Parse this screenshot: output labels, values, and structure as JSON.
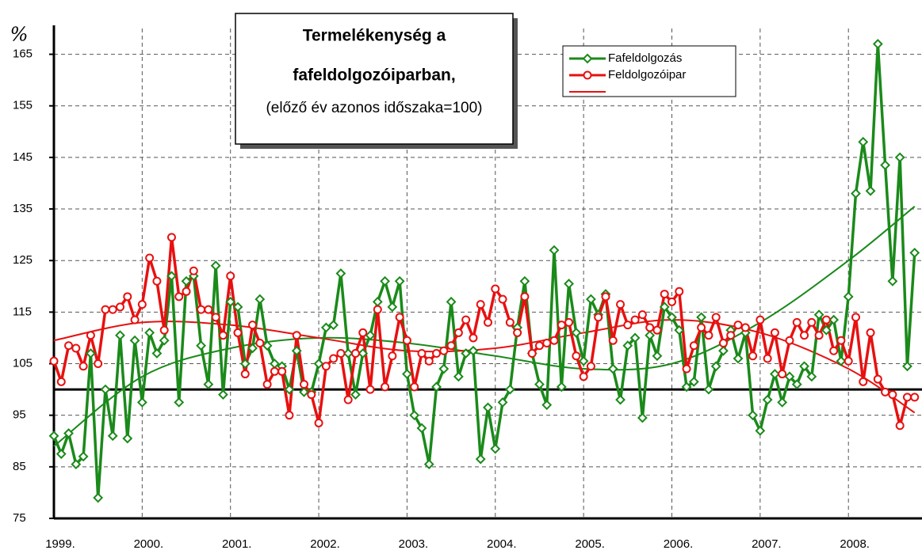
{
  "chart_data": {
    "type": "line",
    "title_lines": [
      "Termelékenység a",
      "fafeldolgozóiparban,"
    ],
    "subtitle": "(előző év azonos időszaka=100)",
    "ylabel": "%",
    "xlim": [
      0,
      118
    ],
    "xticks": [
      {
        "value": 0,
        "label": "1999."
      },
      {
        "value": 12,
        "label": "2000."
      },
      {
        "value": 24,
        "label": "2001."
      },
      {
        "value": 36,
        "label": "2002."
      },
      {
        "value": 48,
        "label": "2003."
      },
      {
        "value": 60,
        "label": "2004."
      },
      {
        "value": 72,
        "label": "2005."
      },
      {
        "value": 84,
        "label": "2006."
      },
      {
        "value": 96,
        "label": "2007."
      },
      {
        "value": 108,
        "label": "2008."
      }
    ],
    "ylim": [
      75,
      170
    ],
    "yticks": [
      75,
      85,
      95,
      105,
      115,
      125,
      135,
      145,
      155,
      165
    ],
    "grid": true,
    "reference_line": 100,
    "series": [
      {
        "name": "Fafeldolgozás",
        "color": "#1a8a1a",
        "marker": "diamond",
        "values": [
          91,
          87.5,
          91.5,
          85.5,
          87,
          107,
          79,
          100,
          91,
          110.5,
          90.5,
          109.5,
          97.5,
          111,
          107,
          109.5,
          122,
          97.5,
          121,
          122,
          108.5,
          101,
          124,
          99,
          117,
          116,
          105,
          108,
          117.5,
          108.5,
          105,
          104.5,
          100,
          107.5,
          99.5,
          99.5,
          105,
          112,
          112.5,
          122.5,
          107,
          99,
          107,
          110.5,
          117,
          121,
          116,
          121,
          103,
          95,
          92.5,
          85.5,
          100.5,
          104,
          117,
          102.5,
          107,
          107.5,
          86.5,
          96.5,
          88.5,
          97.5,
          100,
          112,
          121,
          107,
          101,
          97,
          127,
          100.5,
          120.5,
          111,
          105.5,
          117.5,
          114.5,
          118.5,
          104,
          98,
          108.5,
          110,
          94.5,
          110.5,
          106.5,
          116,
          114,
          111.5,
          100.5,
          101.5,
          114,
          100,
          104.5,
          107.5,
          111.5,
          106,
          111,
          95,
          92,
          98,
          103,
          97.5,
          102.5,
          101,
          104.5,
          102.5,
          114.5,
          111.5,
          113.5,
          105.5,
          118,
          138,
          148,
          138.5,
          167,
          143.5,
          121,
          145,
          104.5,
          126.5
        ]
      },
      {
        "name": "Feldolgozóipar",
        "color": "#e81010",
        "marker": "circle",
        "values": [
          105.5,
          101.5,
          108.5,
          108,
          104.5,
          110.5,
          105,
          115.5,
          115.5,
          116,
          118,
          113.5,
          116.5,
          125.5,
          121,
          111.5,
          129.5,
          118,
          119,
          123,
          115.5,
          115.5,
          114,
          110.5,
          122,
          111,
          103,
          112.5,
          109,
          101,
          103.5,
          103.5,
          95,
          110.5,
          101,
          99,
          93.5,
          104.5,
          106,
          107,
          98,
          107,
          111,
          100,
          115.5,
          100.5,
          106.5,
          114,
          109.5,
          100.5,
          107,
          105.5,
          107,
          107.5,
          108.5,
          111,
          113.5,
          110,
          116.5,
          113,
          119.5,
          117.5,
          113,
          111,
          118,
          107,
          108.5,
          109,
          109.5,
          112.5,
          113,
          106.5,
          102.5,
          104.5,
          114,
          118,
          109.5,
          116.5,
          112.5,
          113.5,
          114.5,
          112,
          111.5,
          118.5,
          117,
          119,
          104,
          108.5,
          112,
          110.5,
          114,
          109,
          110.5,
          112.5,
          112,
          106.5,
          113.5,
          106,
          111,
          103,
          109.5,
          113,
          110.5,
          113,
          110.5,
          113.5,
          107.5,
          109.5,
          105.5,
          114,
          101.5,
          111,
          102,
          99.5,
          99,
          93,
          98.5,
          98.5
        ]
      }
    ],
    "trendlines": [
      {
        "color": "#1a8a1a",
        "x": [
          0,
          12,
          24,
          36,
          48,
          60,
          72,
          84,
          96,
          108,
          117
        ],
        "values": [
          89,
          102.5,
          108,
          110,
          109,
          106.5,
          104,
          105,
          113,
          125,
          135.5
        ]
      },
      {
        "color": "#e81010",
        "x": [
          0,
          12,
          24,
          36,
          48,
          60,
          72,
          84,
          96,
          108,
          117
        ],
        "values": [
          109.5,
          113,
          112.5,
          110,
          107.5,
          108,
          111,
          113.5,
          111,
          104,
          95.5
        ]
      }
    ]
  }
}
